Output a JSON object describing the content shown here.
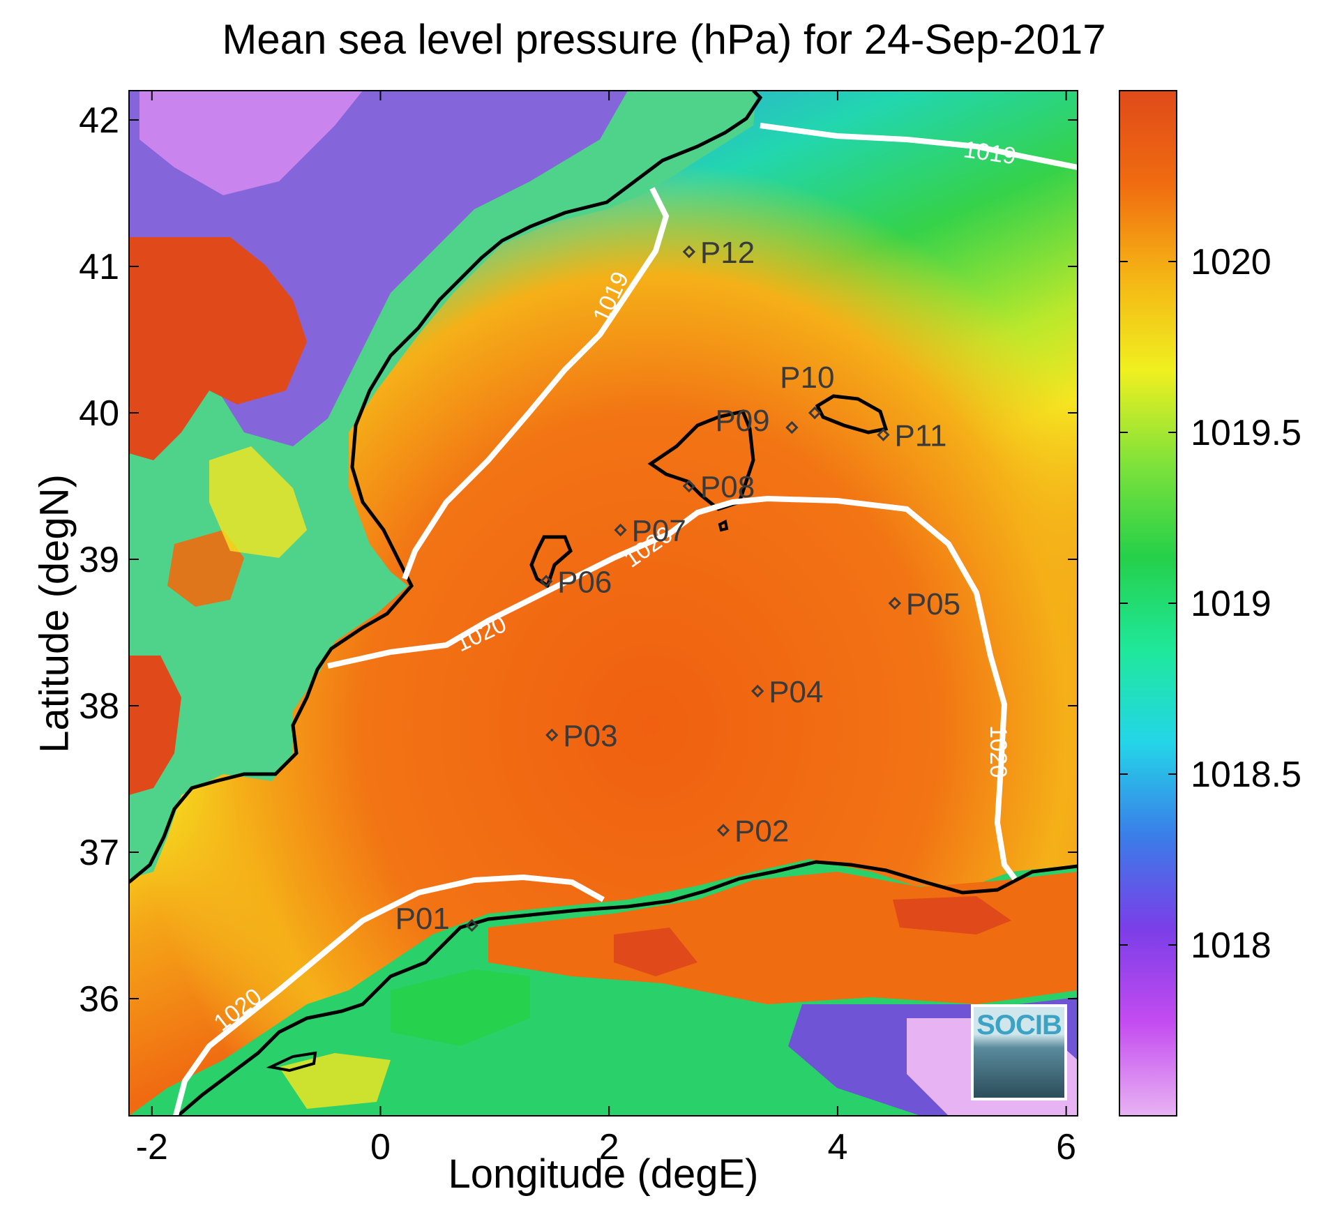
{
  "title": "Mean sea level pressure (hPa) for 24-Sep-2017",
  "xlabel": "Longitude (degE)",
  "ylabel": "Latitude (degN)",
  "logo_text": "SOCIB",
  "x_ticks": [
    "-2",
    "0",
    "2",
    "4",
    "6"
  ],
  "y_ticks": [
    "36",
    "37",
    "38",
    "39",
    "40",
    "41",
    "42"
  ],
  "colorbar_ticks": [
    "1018",
    "1018.5",
    "1019",
    "1019.5",
    "1020"
  ],
  "contour_labels": [
    "1019",
    "1019",
    "1020",
    "1020",
    "1020",
    "1020"
  ],
  "chart_data": {
    "type": "heatmap",
    "title": "Mean sea level pressure (hPa) for 24-Sep-2017",
    "xlabel": "Longitude (degE)",
    "ylabel": "Latitude (degN)",
    "xlim": [
      -2.2,
      6.1
    ],
    "ylim": [
      35.2,
      42.2
    ],
    "colorbar_range": [
      1017.5,
      1020.5
    ],
    "colormap": [
      "#e8b3f2",
      "#c44cf0",
      "#7b3ee8",
      "#3a7de8",
      "#24d5e8",
      "#1fe89a",
      "#25d04a",
      "#7fe23a",
      "#f0f020",
      "#f5b515",
      "#f06c10",
      "#e04a1a"
    ],
    "contour_levels": [
      1019,
      1020
    ],
    "points": [
      {
        "name": "P01",
        "lon": 0.8,
        "lat": 36.5
      },
      {
        "name": "P02",
        "lon": 3.0,
        "lat": 37.15
      },
      {
        "name": "P03",
        "lon": 1.5,
        "lat": 37.8
      },
      {
        "name": "P04",
        "lon": 3.3,
        "lat": 38.1
      },
      {
        "name": "P05",
        "lon": 4.5,
        "lat": 38.7
      },
      {
        "name": "P06",
        "lon": 1.45,
        "lat": 38.85
      },
      {
        "name": "P07",
        "lon": 2.1,
        "lat": 39.2
      },
      {
        "name": "P08",
        "lon": 2.7,
        "lat": 39.5
      },
      {
        "name": "P09",
        "lon": 3.6,
        "lat": 39.9
      },
      {
        "name": "P10",
        "lon": 3.8,
        "lat": 40.0
      },
      {
        "name": "P11",
        "lon": 4.4,
        "lat": 39.85
      },
      {
        "name": "P12",
        "lon": 2.7,
        "lat": 41.1
      }
    ]
  }
}
